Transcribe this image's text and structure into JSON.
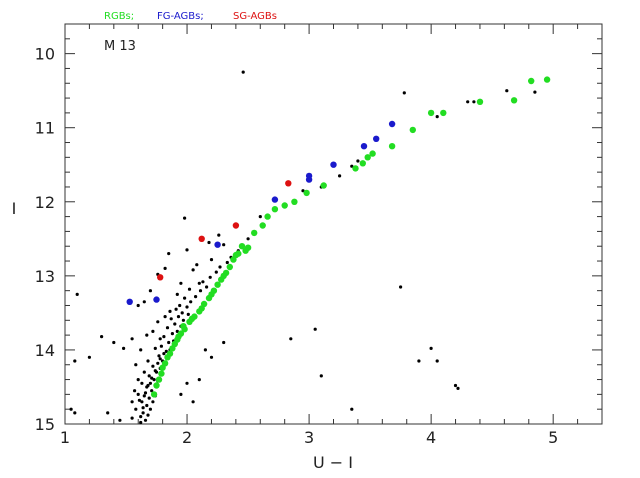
{
  "chart_data": {
    "type": "scatter",
    "title": "",
    "xlabel": "U − I",
    "ylabel": "I",
    "xlim": [
      1,
      5.4
    ],
    "ylim": [
      15,
      9.6
    ],
    "y_inverted": true,
    "x_ticks": [
      1,
      2,
      3,
      4,
      5
    ],
    "y_ticks": [
      10,
      11,
      12,
      13,
      14,
      15
    ],
    "annotation": "M 13",
    "legend_position": "top-left-outside",
    "legend": [
      {
        "label": "RGBs;",
        "color": "#22dd22"
      },
      {
        "label": "FG-AGBs;",
        "color": "#1a1acc"
      },
      {
        "label": "SG-AGBs",
        "color": "#dd1111"
      }
    ],
    "series": [
      {
        "name": "RGBs;",
        "color": "#22dd22",
        "points": [
          [
            4.95,
            10.35
          ],
          [
            4.82,
            10.37
          ],
          [
            4.68,
            10.63
          ],
          [
            4.4,
            10.65
          ],
          [
            4.1,
            10.8
          ],
          [
            4.0,
            10.8
          ],
          [
            3.85,
            11.03
          ],
          [
            3.68,
            11.25
          ],
          [
            3.52,
            11.35
          ],
          [
            3.48,
            11.4
          ],
          [
            3.44,
            11.48
          ],
          [
            3.38,
            11.55
          ],
          [
            3.12,
            11.78
          ],
          [
            2.98,
            11.88
          ],
          [
            2.88,
            12.0
          ],
          [
            2.8,
            12.05
          ],
          [
            2.72,
            12.1
          ],
          [
            2.66,
            12.2
          ],
          [
            2.62,
            12.32
          ],
          [
            2.55,
            12.42
          ],
          [
            2.5,
            12.62
          ],
          [
            2.48,
            12.66
          ],
          [
            2.45,
            12.6
          ],
          [
            2.42,
            12.7
          ],
          [
            2.38,
            12.78
          ],
          [
            2.35,
            12.88
          ],
          [
            2.32,
            12.96
          ],
          [
            2.28,
            13.05
          ],
          [
            2.25,
            13.12
          ],
          [
            2.22,
            13.2
          ],
          [
            2.18,
            13.3
          ],
          [
            2.14,
            13.38
          ],
          [
            2.1,
            13.48
          ],
          [
            2.06,
            13.55
          ],
          [
            2.02,
            13.62
          ],
          [
            1.98,
            13.72
          ],
          [
            1.95,
            13.78
          ],
          [
            1.92,
            13.86
          ],
          [
            1.9,
            13.92
          ],
          [
            1.88,
            13.98
          ],
          [
            1.86,
            14.05
          ],
          [
            1.84,
            14.1
          ],
          [
            1.82,
            14.18
          ],
          [
            1.8,
            14.24
          ],
          [
            1.79,
            14.32
          ],
          [
            1.77,
            14.4
          ],
          [
            1.75,
            14.48
          ],
          [
            1.73,
            14.6
          ],
          [
            1.93,
            13.82
          ],
          [
            1.97,
            13.68
          ],
          [
            2.04,
            13.58
          ],
          [
            2.12,
            13.44
          ],
          [
            2.2,
            13.25
          ],
          [
            2.3,
            13.0
          ],
          [
            2.4,
            12.72
          ]
        ]
      },
      {
        "name": "FG-AGBs;",
        "color": "#1a1acc",
        "points": [
          [
            3.68,
            10.95
          ],
          [
            3.55,
            11.15
          ],
          [
            3.45,
            11.25
          ],
          [
            3.2,
            11.5
          ],
          [
            3.0,
            11.65
          ],
          [
            3.0,
            11.7
          ],
          [
            2.72,
            11.97
          ],
          [
            2.25,
            12.58
          ],
          [
            1.75,
            13.32
          ],
          [
            1.53,
            13.35
          ]
        ]
      },
      {
        "name": "SG-AGBs",
        "color": "#dd1111",
        "points": [
          [
            2.83,
            11.75
          ],
          [
            2.4,
            12.32
          ],
          [
            2.12,
            12.5
          ],
          [
            1.78,
            13.02
          ]
        ]
      },
      {
        "name": "",
        "color": "#000000",
        "points": [
          [
            4.85,
            10.52
          ],
          [
            4.62,
            10.5
          ],
          [
            4.35,
            10.65
          ],
          [
            4.3,
            10.65
          ],
          [
            4.05,
            10.85
          ],
          [
            3.78,
            10.53
          ],
          [
            3.4,
            11.45
          ],
          [
            3.35,
            11.52
          ],
          [
            3.25,
            11.65
          ],
          [
            3.1,
            11.8
          ],
          [
            2.95,
            11.85
          ],
          [
            2.6,
            12.2
          ],
          [
            2.5,
            12.5
          ],
          [
            2.46,
            10.25
          ],
          [
            2.3,
            12.58
          ],
          [
            2.2,
            12.78
          ],
          [
            2.1,
            13.1
          ],
          [
            2.05,
            12.92
          ],
          [
            2.0,
            12.65
          ],
          [
            1.98,
            12.22
          ],
          [
            1.95,
            13.1
          ],
          [
            1.92,
            13.25
          ],
          [
            1.85,
            12.7
          ],
          [
            1.82,
            12.9
          ],
          [
            1.76,
            12.98
          ],
          [
            1.7,
            13.2
          ],
          [
            1.65,
            13.35
          ],
          [
            1.6,
            13.4
          ],
          [
            1.55,
            13.85
          ],
          [
            1.48,
            13.98
          ],
          [
            1.4,
            13.9
          ],
          [
            1.3,
            13.82
          ],
          [
            1.2,
            14.1
          ],
          [
            1.1,
            13.25
          ],
          [
            1.08,
            14.15
          ],
          [
            1.05,
            14.8
          ],
          [
            1.08,
            14.85
          ],
          [
            1.35,
            14.85
          ],
          [
            1.45,
            14.95
          ],
          [
            1.55,
            14.92
          ],
          [
            3.75,
            13.15
          ],
          [
            3.05,
            13.72
          ],
          [
            2.85,
            13.85
          ],
          [
            3.1,
            14.35
          ],
          [
            3.35,
            14.8
          ],
          [
            4.0,
            13.98
          ],
          [
            4.05,
            14.15
          ],
          [
            3.9,
            14.15
          ],
          [
            4.2,
            14.48
          ],
          [
            4.22,
            14.52
          ],
          [
            2.3,
            13.9
          ],
          [
            2.2,
            14.1
          ],
          [
            2.1,
            14.4
          ],
          [
            2.05,
            14.7
          ],
          [
            2.0,
            14.45
          ],
          [
            1.95,
            14.6
          ],
          [
            2.15,
            14.0
          ],
          [
            1.66,
            14.95
          ],
          [
            1.62,
            14.9
          ],
          [
            1.64,
            14.85
          ],
          [
            1.68,
            14.88
          ],
          [
            1.7,
            14.8
          ],
          [
            1.67,
            14.75
          ],
          [
            1.63,
            14.7
          ],
          [
            1.69,
            14.65
          ],
          [
            1.72,
            14.7
          ],
          [
            1.65,
            14.62
          ],
          [
            1.71,
            14.55
          ],
          [
            1.74,
            14.62
          ],
          [
            1.67,
            14.5
          ],
          [
            1.7,
            14.45
          ],
          [
            1.73,
            14.4
          ],
          [
            1.76,
            14.42
          ],
          [
            1.69,
            14.35
          ],
          [
            1.75,
            14.3
          ],
          [
            1.78,
            14.25
          ],
          [
            1.72,
            14.22
          ],
          [
            1.8,
            14.15
          ],
          [
            1.77,
            14.08
          ],
          [
            1.83,
            14.02
          ],
          [
            1.79,
            13.95
          ],
          [
            1.85,
            13.9
          ],
          [
            1.81,
            13.82
          ],
          [
            1.88,
            13.78
          ],
          [
            1.84,
            13.7
          ],
          [
            1.9,
            13.65
          ],
          [
            1.87,
            13.58
          ],
          [
            1.93,
            13.55
          ],
          [
            1.96,
            13.5
          ],
          [
            1.91,
            13.45
          ],
          [
            2.0,
            13.42
          ],
          [
            2.03,
            13.35
          ],
          [
            1.98,
            13.3
          ],
          [
            2.07,
            13.28
          ],
          [
            2.11,
            13.2
          ],
          [
            2.16,
            13.15
          ],
          [
            2.13,
            13.08
          ],
          [
            2.19,
            13.02
          ],
          [
            2.24,
            12.95
          ],
          [
            2.27,
            12.88
          ],
          [
            2.33,
            12.82
          ],
          [
            2.36,
            12.75
          ],
          [
            2.42,
            12.66
          ],
          [
            1.62,
            14.98
          ],
          [
            1.64,
            14.78
          ],
          [
            1.61,
            14.68
          ],
          [
            1.66,
            14.58
          ],
          [
            1.68,
            14.48
          ],
          [
            1.71,
            14.38
          ],
          [
            1.74,
            14.28
          ],
          [
            1.76,
            14.18
          ],
          [
            1.78,
            14.12
          ],
          [
            1.81,
            14.05
          ],
          [
            1.86,
            14.0
          ],
          [
            1.89,
            13.88
          ],
          [
            1.92,
            13.75
          ],
          [
            1.95,
            13.68
          ],
          [
            1.97,
            13.6
          ],
          [
            2.01,
            13.52
          ],
          [
            1.94,
            13.4
          ],
          [
            1.86,
            13.48
          ],
          [
            1.82,
            13.55
          ],
          [
            1.76,
            13.62
          ],
          [
            1.72,
            13.75
          ],
          [
            1.67,
            13.8
          ],
          [
            1.62,
            14.0
          ],
          [
            1.58,
            14.2
          ],
          [
            1.6,
            14.4
          ],
          [
            1.57,
            14.55
          ],
          [
            1.55,
            14.7
          ],
          [
            1.58,
            14.8
          ],
          [
            1.6,
            14.6
          ],
          [
            1.63,
            14.45
          ],
          [
            1.65,
            14.3
          ],
          [
            1.68,
            14.15
          ],
          [
            1.74,
            13.98
          ],
          [
            1.78,
            13.85
          ],
          [
            2.08,
            12.85
          ],
          [
            2.18,
            12.55
          ],
          [
            2.26,
            12.45
          ],
          [
            2.02,
            13.18
          ]
        ]
      }
    ]
  }
}
